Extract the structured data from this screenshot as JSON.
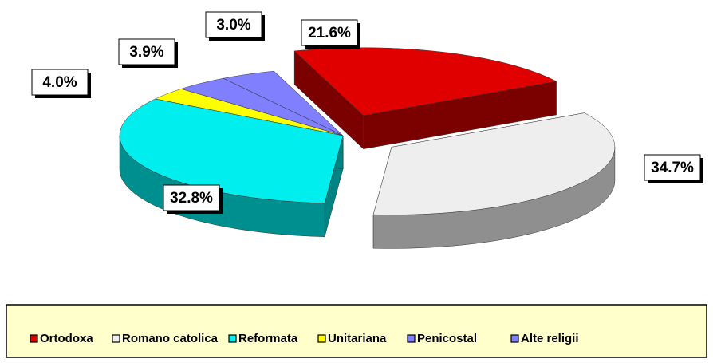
{
  "chart_data": {
    "type": "pie3d",
    "categories": [
      "Ortodoxa",
      "Romano catolica",
      "Reformata",
      "Unitariana",
      "Penicostal",
      "Alte religii"
    ],
    "values": [
      21.6,
      34.7,
      32.8,
      3.0,
      3.9,
      4.0
    ],
    "value_labels": [
      "21.6%",
      "34.7%",
      "32.8%",
      "3.0%",
      "3.9%",
      "4.0%"
    ],
    "colors": [
      "#e00000",
      "#eeeeee",
      "#00eeee",
      "#ffff00",
      "#7f7fff",
      "#8080ff"
    ],
    "legend": "bottom"
  }
}
